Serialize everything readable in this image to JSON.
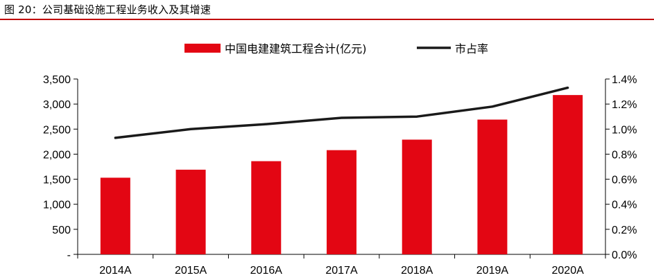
{
  "figure_title": "图 20：公司基础设施工程业务收入及其增速",
  "colors": {
    "bar": "#e30613",
    "line": "#1a1a1a",
    "rule": "#c00000"
  },
  "chart_data": {
    "type": "bar",
    "title": "",
    "categories": [
      "2014A",
      "2015A",
      "2016A",
      "2017A",
      "2018A",
      "2019A",
      "2020A"
    ],
    "series": [
      {
        "name": "中国电建建筑工程合计(亿元)",
        "type": "bar",
        "axis": "left",
        "values": [
          1530,
          1690,
          1860,
          2080,
          2290,
          2690,
          3180
        ]
      },
      {
        "name": "市占率",
        "type": "line",
        "axis": "right",
        "values": [
          0.93,
          1.0,
          1.04,
          1.09,
          1.1,
          1.18,
          1.33
        ]
      }
    ],
    "y_left": {
      "min": 0,
      "max": 3500,
      "step": 500,
      "tick_labels": [
        "-",
        "500",
        "1,000",
        "1,500",
        "2,000",
        "2,500",
        "3,000",
        "3,500"
      ]
    },
    "y_right": {
      "min": 0,
      "max": 1.4,
      "step": 0.2,
      "tick_labels": [
        "0.0%",
        "0.2%",
        "0.4%",
        "0.6%",
        "0.8%",
        "1.0%",
        "1.2%",
        "1.4%"
      ]
    },
    "grid": false,
    "legend_position": "top-center"
  }
}
